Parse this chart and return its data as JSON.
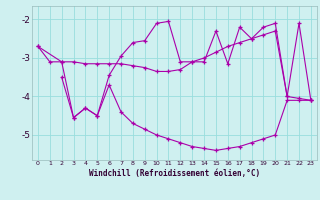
{
  "xlabel": "Windchill (Refroidissement éolien,°C)",
  "bg_color": "#cff0f0",
  "line_color": "#aa00aa",
  "grid_color": "#99dddd",
  "xlim": [
    -0.5,
    23.5
  ],
  "ylim": [
    -5.65,
    -1.65
  ],
  "xticks": [
    0,
    1,
    2,
    3,
    4,
    5,
    6,
    7,
    8,
    9,
    10,
    11,
    12,
    13,
    14,
    15,
    16,
    17,
    18,
    19,
    20,
    21,
    22,
    23
  ],
  "yticks": [
    -5,
    -4,
    -3,
    -2
  ],
  "line1_x": [
    0,
    1,
    2,
    3,
    4,
    5,
    6,
    7,
    8,
    9,
    10,
    11,
    12,
    13,
    14,
    15,
    16,
    17,
    18,
    19,
    20,
    21,
    22,
    23
  ],
  "line1_y": [
    -2.7,
    -3.1,
    -3.1,
    -3.1,
    -3.15,
    -3.15,
    -3.15,
    -3.15,
    -3.2,
    -3.25,
    -3.35,
    -3.35,
    -3.3,
    -3.1,
    -3.0,
    -2.85,
    -2.7,
    -2.6,
    -2.5,
    -2.4,
    -2.3,
    -4.0,
    -4.05,
    -4.1
  ],
  "line2_x": [
    0,
    2,
    3,
    4,
    5,
    6,
    7,
    8,
    9,
    10,
    11,
    12,
    13,
    14,
    15,
    16,
    17,
    18,
    19,
    20,
    21,
    22,
    23
  ],
  "line2_y": [
    -2.7,
    -3.1,
    -4.55,
    -4.3,
    -4.5,
    -3.45,
    -2.95,
    -2.6,
    -2.55,
    -2.1,
    -2.05,
    -3.1,
    -3.1,
    -3.1,
    -2.3,
    -3.15,
    -2.2,
    -2.5,
    -2.2,
    -2.1,
    -4.0,
    -2.1,
    -4.1
  ],
  "line3_x": [
    2,
    3,
    4,
    5,
    6,
    7,
    8,
    9,
    10,
    11,
    12,
    13,
    14,
    15,
    16,
    17,
    18,
    19,
    20,
    21,
    22,
    23
  ],
  "line3_y": [
    -3.5,
    -4.55,
    -4.3,
    -4.5,
    -3.7,
    -4.4,
    -4.7,
    -4.85,
    -5.0,
    -5.1,
    -5.2,
    -5.3,
    -5.35,
    -5.4,
    -5.35,
    -5.3,
    -5.2,
    -5.1,
    -5.0,
    -4.1,
    -4.1,
    -4.1
  ]
}
